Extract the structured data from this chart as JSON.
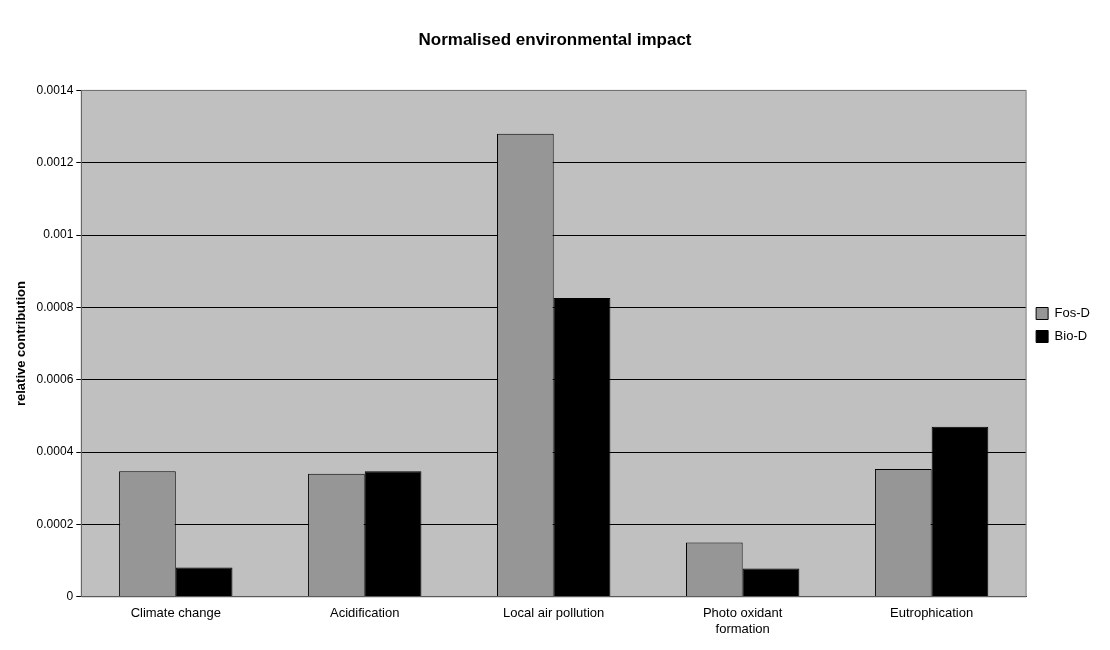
{
  "chart_data": {
    "type": "bar",
    "title": "Normalised environmental impact",
    "ylabel": "relative contribution",
    "categories": [
      "Climate change",
      "Acidification",
      "Local air pollution",
      "Photo oxidant formation",
      "Eutrophication"
    ],
    "series": [
      {
        "name": "Fos-D",
        "color": "#969696",
        "values": [
          0.000347,
          0.00034,
          0.00128,
          0.00015,
          0.000353
        ]
      },
      {
        "name": "Bio-D",
        "color": "#000000",
        "values": [
          8.1e-05,
          0.000347,
          0.000826,
          7.8e-05,
          0.00047
        ]
      }
    ],
    "ylim": [
      0,
      0.0014
    ],
    "yticks": [
      0,
      0.0002,
      0.0004,
      0.0006,
      0.0008,
      0.001,
      0.0012,
      0.0014
    ],
    "grid": "y",
    "legend": "right"
  }
}
